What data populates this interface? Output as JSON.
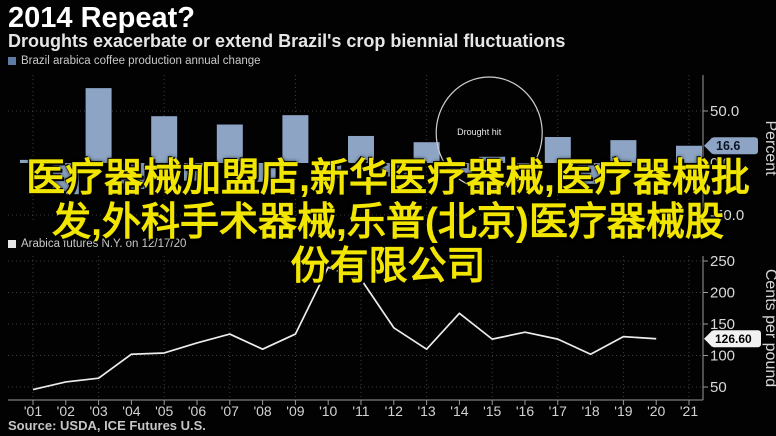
{
  "header": {
    "title": "2014 Repeat?",
    "subtitle": "Droughts exacerbate or extend Brazil's crop biennial fluctuations"
  },
  "overlay_text": {
    "color": "#f2e600",
    "line1": "医疗器械加盟店,新华医疗器械,医疗器械批",
    "line2": "发,外科手术器械,乐普(北京)医疗器械股",
    "line3": "份有限公司"
  },
  "source": "Source: USDA, ICE Futures U.S.",
  "chart_data": [
    {
      "type": "bar",
      "legend": "Brazil arabica coffee production annual change",
      "ylabel": "Percent",
      "categories": [
        "'01",
        "'02",
        "'03",
        "'04",
        "'05",
        "'06",
        "'07",
        "'08",
        "'09",
        "'10",
        "'11",
        "'12",
        "'13",
        "'14",
        "'15",
        "'16",
        "'17",
        "'18",
        "'19",
        "'20",
        "'21"
      ],
      "values": [
        3,
        -30,
        72,
        -25,
        45,
        -17,
        37,
        -18,
        46,
        -14,
        26,
        -13,
        20,
        -10,
        6,
        -8,
        25,
        -20,
        22,
        -15,
        16.6
      ],
      "ylim": [
        -55,
        85
      ],
      "yticks": [
        {
          "v": 50,
          "label": "50.0"
        },
        {
          "v": 0,
          "label": "0.0"
        },
        {
          "v": -50,
          "label": "-50.0"
        }
      ],
      "current_value_tag": {
        "label": "16.6",
        "value": 16.6
      },
      "annotation": {
        "label": "Drought hit",
        "x_index": 14
      },
      "bar_color": "#8da4c4",
      "legend_marker_color": "#5d7ba4",
      "grid": true,
      "legend_position": "top-left"
    },
    {
      "type": "line",
      "legend": "Arabica futures N.Y. on 12/17/20",
      "ylabel": "Cents per pound",
      "categories": [
        "'01",
        "'02",
        "'03",
        "'04",
        "'05",
        "'06",
        "'07",
        "'08",
        "'09",
        "'10",
        "'11",
        "'12",
        "'13",
        "'14",
        "'15",
        "'16",
        "'17",
        "'18",
        "'19",
        "'20"
      ],
      "values": [
        46,
        58,
        64,
        102,
        104,
        120,
        134,
        110,
        134,
        240,
        221,
        144,
        110,
        167,
        126,
        137,
        126,
        102,
        130,
        126.6
      ],
      "ylim": [
        28,
        253
      ],
      "yticks": [
        {
          "v": 250,
          "label": "250"
        },
        {
          "v": 200,
          "label": "200"
        },
        {
          "v": 150,
          "label": "150"
        },
        {
          "v": 100,
          "label": "100"
        },
        {
          "v": 50,
          "label": "50"
        }
      ],
      "current_value_tag": {
        "label": "126.60",
        "value": 126.6
      },
      "line_color": "#ececec",
      "legend_marker_color": "#e6e6e6",
      "grid": true,
      "legend_position": "top-left"
    }
  ]
}
